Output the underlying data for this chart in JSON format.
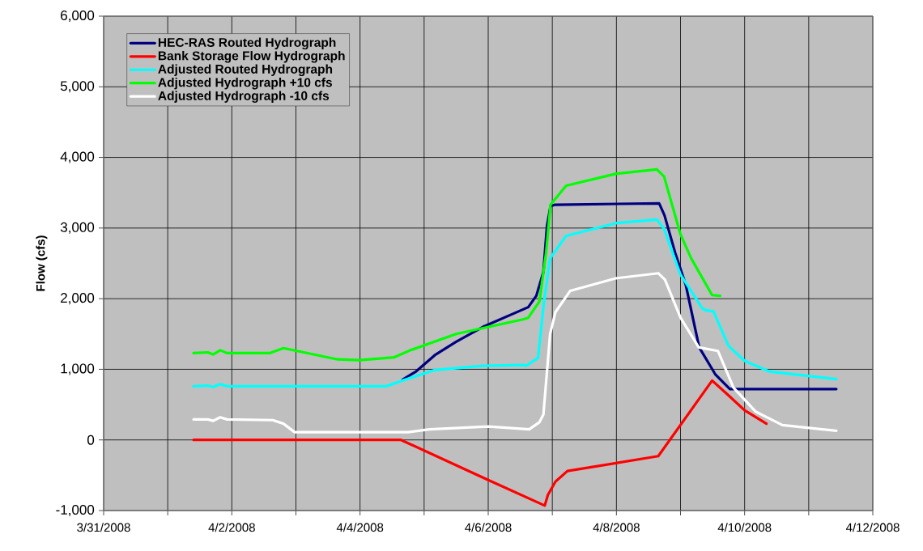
{
  "chart_data": {
    "type": "line",
    "ylabel": "Flow (cfs)",
    "xlim": [
      "2008-03-31",
      "2008-04-12"
    ],
    "ylim": [
      -1000,
      6000
    ],
    "xticks": [
      {
        "value": "2008-03-31",
        "label": "3/31/2008"
      },
      {
        "value": "2008-04-01",
        "label": null
      },
      {
        "value": "2008-04-02",
        "label": "4/2/2008"
      },
      {
        "value": "2008-04-03",
        "label": null
      },
      {
        "value": "2008-04-04",
        "label": "4/4/2008"
      },
      {
        "value": "2008-04-05",
        "label": null
      },
      {
        "value": "2008-04-06",
        "label": "4/6/2008"
      },
      {
        "value": "2008-04-07",
        "label": null
      },
      {
        "value": "2008-04-08",
        "label": "4/8/2008"
      },
      {
        "value": "2008-04-09",
        "label": null
      },
      {
        "value": "2008-04-10",
        "label": "4/10/2008"
      },
      {
        "value": "2008-04-11",
        "label": null
      },
      {
        "value": "2008-04-12",
        "label": "4/12/2008"
      }
    ],
    "yticks": [
      {
        "value": -1000,
        "label": "-1,000"
      },
      0,
      {
        "value": 1000,
        "label": "1,000"
      },
      {
        "value": 2000,
        "label": "2,000"
      },
      {
        "value": 3000,
        "label": "3,000"
      },
      {
        "value": 4000,
        "label": "4,000"
      },
      {
        "value": 5000,
        "label": "5,000"
      },
      {
        "value": 6000,
        "label": "6,000"
      }
    ],
    "grid": true,
    "legend": "top left",
    "series": [
      {
        "name": "HEC-RAS Routed Hydrograph",
        "color": "#000080",
        "x": [
          "2008-04-04T16:00",
          "2008-04-04T21:00",
          "2008-04-05T04:00",
          "2008-04-05T12:00",
          "2008-04-05T22:00",
          "2008-04-06T15:00",
          "2008-04-06T18:00",
          "2008-04-06T20:40",
          "2008-04-06T22:00",
          "2008-04-06T23:20",
          "2008-04-07T01:00",
          "2008-04-08T16:00",
          "2008-04-08T18:00",
          "2008-04-08T22:00",
          "2008-04-09T02:00",
          "2008-04-09T07:00",
          "2008-04-09T13:00",
          "2008-04-09T18:30",
          "2008-04-11T10:20"
        ],
        "values": [
          855,
          970,
          1200,
          1390,
          1600,
          1880,
          2040,
          2380,
          3030,
          3310,
          3330,
          3350,
          3180,
          2650,
          2190,
          1310,
          930,
          720,
          720
        ]
      },
      {
        "name": "Bank Storage Flow Hydrograph",
        "color": "#ff0000",
        "x": [
          "2008-04-01T09:40",
          "2008-04-04T15:20",
          "2008-04-05T23:00",
          "2008-04-06T21:10",
          "2008-04-06T22:20",
          "2008-04-07T01:10",
          "2008-04-07T05:40",
          "2008-04-08T15:40",
          "2008-04-09T11:50",
          "2008-04-09T18:00",
          "2008-04-10T00:00",
          "2008-04-10T08:10"
        ],
        "values": [
          0,
          0,
          -550,
          -930,
          -780,
          -590,
          -440,
          -230,
          840,
          630,
          420,
          230
        ]
      },
      {
        "name": "Adjusted Routed Hydrograph",
        "color": "#00ffff",
        "x": [
          "2008-04-01T09:40",
          "2008-04-01T15:00",
          "2008-04-01T17:00",
          "2008-04-01T19:40",
          "2008-04-01T22:10",
          "2008-04-04T09:50",
          "2008-04-04T15:50",
          "2008-04-05T04:00",
          "2008-04-05T22:00",
          "2008-04-06T13:20",
          "2008-04-06T14:10",
          "2008-04-06T18:40",
          "2008-04-06T20:40",
          "2008-04-06T23:10",
          "2008-04-07T05:10",
          "2008-04-08T00:00",
          "2008-04-08T15:10",
          "2008-04-08T17:50",
          "2008-04-09T00:00",
          "2008-04-09T08:00",
          "2008-04-09T09:00",
          "2008-04-09T12:20",
          "2008-04-09T18:00",
          "2008-04-10T00:00",
          "2008-04-10T09:10",
          "2008-04-11T10:20"
        ],
        "values": [
          760,
          770,
          750,
          790,
          760,
          760,
          840,
          990,
          1050,
          1060,
          1050,
          1160,
          1890,
          2570,
          2890,
          3070,
          3120,
          2990,
          2340,
          1870,
          1840,
          1820,
          1330,
          1120,
          970,
          860
        ]
      },
      {
        "name": "Adjusted Hydrograph +10 cfs",
        "color": "#00ff00",
        "x": [
          "2008-04-01T09:40",
          "2008-04-01T15:00",
          "2008-04-01T17:00",
          "2008-04-01T19:40",
          "2008-04-01T22:10",
          "2008-04-02T14:20",
          "2008-04-02T19:20",
          "2008-04-03T15:40",
          "2008-04-03T23:50",
          "2008-04-04T12:50",
          "2008-04-04T18:50",
          "2008-04-05T12:00",
          "2008-04-06T13:20",
          "2008-04-06T15:00",
          "2008-04-06T19:10",
          "2008-04-06T21:40",
          "2008-04-06T23:20",
          "2008-04-07T05:10",
          "2008-04-08T00:00",
          "2008-04-08T15:10",
          "2008-04-08T17:50",
          "2008-04-09T00:00",
          "2008-04-09T04:00",
          "2008-04-09T11:50",
          "2008-04-09T14:50"
        ],
        "values": [
          1230,
          1240,
          1210,
          1270,
          1230,
          1230,
          1300,
          1140,
          1130,
          1170,
          1270,
          1500,
          1710,
          1730,
          1960,
          2650,
          3330,
          3600,
          3770,
          3830,
          3730,
          2910,
          2570,
          2050,
          2040
        ]
      },
      {
        "name": "Adjusted Hydrograph -10 cfs",
        "color": "#ffffff",
        "x": [
          "2008-04-01T09:40",
          "2008-04-01T15:00",
          "2008-04-01T17:00",
          "2008-04-01T19:40",
          "2008-04-01T22:10",
          "2008-04-02T15:20",
          "2008-04-02T19:20",
          "2008-04-02T23:30",
          "2008-04-04T18:00",
          "2008-04-05T02:00",
          "2008-04-06T00:00",
          "2008-04-06T15:20",
          "2008-04-06T19:10",
          "2008-04-06T20:40",
          "2008-04-06T23:10",
          "2008-04-07T01:10",
          "2008-04-07T06:40",
          "2008-04-08T00:00",
          "2008-04-08T15:40",
          "2008-04-08T18:10",
          "2008-04-09T00:00",
          "2008-04-09T06:50",
          "2008-04-09T14:00",
          "2008-04-09T19:50",
          "2008-04-10T04:10",
          "2008-04-10T14:10",
          "2008-04-11T10:20"
        ],
        "values": [
          290,
          290,
          270,
          320,
          290,
          280,
          230,
          110,
          110,
          150,
          190,
          150,
          250,
          360,
          1500,
          1810,
          2110,
          2290,
          2360,
          2270,
          1730,
          1310,
          1260,
          740,
          400,
          210,
          130
        ]
      }
    ]
  }
}
